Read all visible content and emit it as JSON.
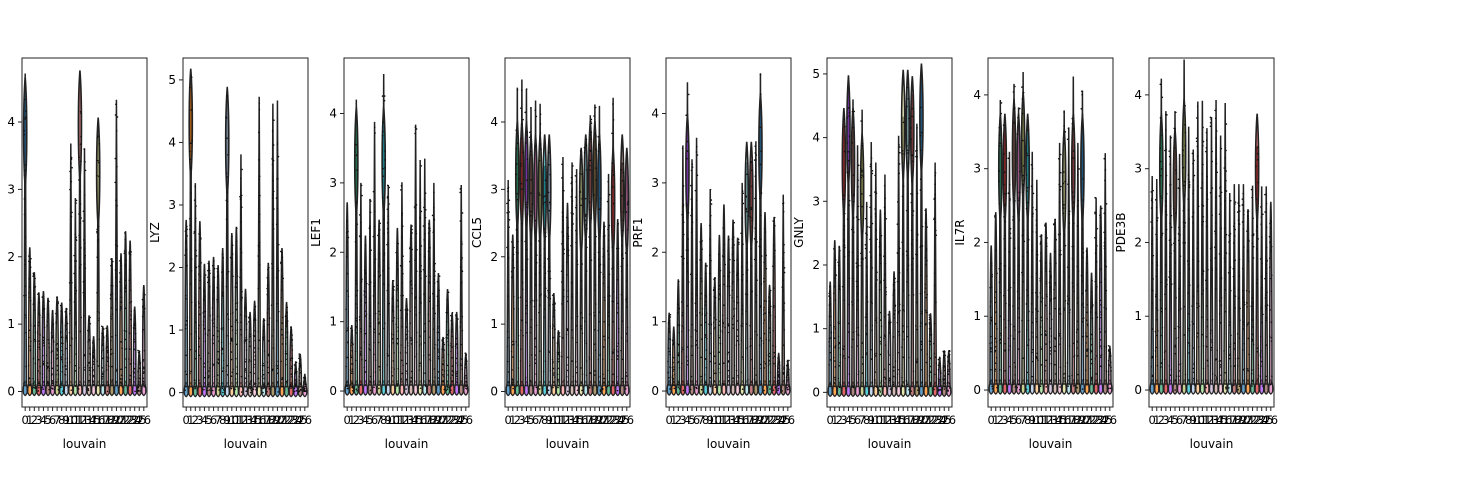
{
  "figure": {
    "background": "#ffffff",
    "edge_color": "#222222"
  },
  "chart_data": [
    {
      "type": "violin",
      "title": "",
      "xlabel": "louvain",
      "ylabel": "",
      "ylim": [
        -0.23,
        4.95
      ],
      "yticks": [
        0,
        1,
        2,
        3,
        4
      ],
      "ytick_labels": [
        "0",
        "1",
        "2",
        "3",
        "4"
      ],
      "categories": [
        "0",
        "1",
        "2",
        "3",
        "4",
        "5",
        "6",
        "7",
        "8",
        "9",
        "10",
        "11",
        "12",
        "13",
        "14",
        "15",
        "16",
        "17",
        "18",
        "19",
        "20",
        "21",
        "22",
        "23",
        "24",
        "25",
        "26"
      ],
      "max_values": [
        4.72,
        2.14,
        1.77,
        1.47,
        1.49,
        1.39,
        1.21,
        1.41,
        1.32,
        1.24,
        3.68,
        2.87,
        4.56,
        3.61,
        1.13,
        0.82,
        4.01,
        0.97,
        0.98,
        1.98,
        4.33,
        2.05,
        2.38,
        2.24,
        1.26,
        0.61,
        1.58
      ],
      "bulk_center": [
        3.85,
        0,
        0,
        0,
        0,
        0,
        0,
        0,
        0,
        0,
        0,
        0,
        3.95,
        0,
        0,
        0,
        3.25,
        0,
        0,
        0,
        0,
        0,
        0,
        0,
        0,
        0,
        0
      ]
    },
    {
      "type": "violin",
      "title": "",
      "xlabel": "louvain",
      "ylabel": "LYZ",
      "ylim": [
        -0.23,
        5.35
      ],
      "yticks": [
        0,
        1,
        2,
        3,
        4,
        5
      ],
      "ytick_labels": [
        "0",
        "1",
        "2",
        "3",
        "4",
        "5"
      ],
      "categories": [
        "0",
        "1",
        "2",
        "3",
        "4",
        "5",
        "6",
        "7",
        "8",
        "9",
        "10",
        "11",
        "12",
        "13",
        "14",
        "15",
        "16",
        "17",
        "18",
        "19",
        "20",
        "21",
        "22",
        "23",
        "24",
        "25",
        "26"
      ],
      "max_values": [
        2.76,
        5.14,
        3.35,
        2.74,
        2.06,
        2.11,
        2.17,
        2.04,
        2.31,
        4.89,
        2.55,
        2.65,
        3.81,
        1.66,
        1.29,
        1.47,
        4.73,
        1.19,
        2.07,
        4.62,
        4.67,
        2.31,
        1.45,
        1.06,
        0.5,
        0.62,
        0.3
      ],
      "bulk_center": [
        0,
        4.3,
        0,
        0,
        0,
        0,
        0,
        0,
        0,
        4.0,
        0,
        0,
        0,
        0,
        0,
        0,
        0,
        0,
        0,
        0,
        0,
        0,
        0,
        0,
        0,
        0,
        0
      ]
    },
    {
      "type": "violin",
      "title": "",
      "xlabel": "louvain",
      "ylabel": "LEF1",
      "ylim": [
        -0.23,
        4.8
      ],
      "yticks": [
        0,
        1,
        2,
        3,
        4
      ],
      "ytick_labels": [
        "0",
        "1",
        "2",
        "3",
        "4"
      ],
      "categories": [
        "0",
        "1",
        "2",
        "3",
        "4",
        "5",
        "6",
        "7",
        "8",
        "9",
        "10",
        "11",
        "12",
        "13",
        "14",
        "15",
        "16",
        "17",
        "18",
        "19",
        "20",
        "21",
        "22",
        "23",
        "24",
        "25",
        "26"
      ],
      "max_values": [
        2.72,
        0.95,
        4.2,
        3.0,
        2.24,
        2.77,
        3.88,
        2.47,
        4.57,
        2.97,
        1.6,
        2.35,
        3.01,
        1.34,
        2.4,
        3.84,
        3.33,
        3.35,
        2.47,
        3.0,
        1.7,
        0.78,
        1.47,
        1.13,
        1.14,
        2.97,
        0.55
      ],
      "bulk_center": [
        0,
        0,
        3.3,
        0,
        0,
        0,
        0,
        0,
        3.3,
        0,
        0,
        0,
        0,
        0,
        0,
        0,
        0,
        0,
        0,
        0,
        0,
        0,
        0,
        0,
        0,
        0,
        0
      ]
    },
    {
      "type": "violin",
      "title": "",
      "xlabel": "louvain",
      "ylabel": "CCL5",
      "ylim": [
        -0.23,
        4.95
      ],
      "yticks": [
        0,
        1,
        2,
        3,
        4
      ],
      "ytick_labels": [
        "0",
        "1",
        "2",
        "3",
        "4"
      ],
      "categories": [
        "0",
        "1",
        "2",
        "3",
        "4",
        "5",
        "6",
        "7",
        "8",
        "9",
        "10",
        "11",
        "12",
        "13",
        "14",
        "15",
        "16",
        "17",
        "18",
        "19",
        "20",
        "21",
        "22",
        "23",
        "24",
        "25",
        "26"
      ],
      "max_values": [
        3.14,
        2.33,
        4.51,
        4.63,
        4.49,
        4.22,
        4.32,
        4.27,
        3.35,
        3.67,
        1.46,
        0.91,
        3.48,
        2.8,
        3.4,
        3.3,
        3.6,
        3.79,
        4.1,
        4.26,
        4.24,
        2.52,
        3.23,
        4.36,
        2.56,
        3.4,
        3.4
      ],
      "bulk_center": [
        0,
        0,
        3.2,
        3.2,
        3.2,
        3.0,
        3.0,
        3.0,
        3.0,
        3.0,
        0,
        0,
        0,
        0,
        0,
        0,
        2.8,
        3.0,
        3.2,
        3.2,
        3.0,
        0,
        0,
        2.8,
        0,
        3.0,
        2.8
      ]
    },
    {
      "type": "violin",
      "title": "",
      "xlabel": "louvain",
      "ylabel": "PRF1",
      "ylim": [
        -0.23,
        4.8
      ],
      "yticks": [
        0,
        1,
        2,
        3,
        4
      ],
      "ytick_labels": [
        "0",
        "1",
        "2",
        "3",
        "4"
      ],
      "categories": [
        "0",
        "1",
        "2",
        "3",
        "4",
        "5",
        "6",
        "7",
        "8",
        "9",
        "10",
        "11",
        "12",
        "13",
        "14",
        "15",
        "16",
        "17",
        "18",
        "19",
        "20",
        "21",
        "22",
        "23",
        "24",
        "25",
        "26"
      ],
      "max_values": [
        1.13,
        0.93,
        1.61,
        3.54,
        4.45,
        3.34,
        3.65,
        2.42,
        1.85,
        2.91,
        1.64,
        2.25,
        2.69,
        2.24,
        2.47,
        2.21,
        3.0,
        3.3,
        3.32,
        3.6,
        4.58,
        2.58,
        1.53,
        2.51,
        0.55,
        2.83,
        0.45
      ],
      "bulk_center": [
        0,
        0,
        0,
        0,
        3.2,
        0,
        0,
        0,
        0,
        0,
        0,
        0,
        0,
        0,
        0,
        0,
        0,
        2.8,
        2.8,
        0,
        3.5,
        0,
        0,
        0,
        0,
        0,
        0
      ]
    },
    {
      "type": "violin",
      "title": "",
      "xlabel": "louvain",
      "ylabel": "GNLY",
      "ylim": [
        -0.23,
        5.25
      ],
      "yticks": [
        0,
        1,
        2,
        3,
        4,
        5
      ],
      "ytick_labels": [
        "0",
        "1",
        "2",
        "3",
        "4",
        "5"
      ],
      "categories": [
        "0",
        "1",
        "2",
        "3",
        "4",
        "5",
        "6",
        "7",
        "8",
        "9",
        "10",
        "11",
        "12",
        "13",
        "14",
        "15",
        "16",
        "17",
        "18",
        "19",
        "20",
        "21",
        "22",
        "23",
        "24",
        "25",
        "26"
      ],
      "max_values": [
        1.74,
        2.39,
        2.3,
        4.3,
        4.98,
        4.6,
        3.88,
        4.44,
        2.99,
        3.93,
        3.61,
        2.87,
        3.42,
        1.28,
        1.9,
        4.03,
        4.33,
        4.91,
        4.68,
        4.22,
        4.92,
        2.89,
        1.24,
        3.61,
        0.56,
        0.66,
        0.66
      ],
      "bulk_center": [
        0,
        0,
        0,
        3.6,
        4.1,
        3.6,
        0,
        3.2,
        0,
        0,
        0,
        0,
        0,
        0,
        0,
        0,
        4.2,
        4.2,
        4.1,
        0,
        4.3,
        0,
        0,
        0,
        0,
        0,
        0
      ]
    },
    {
      "type": "violin",
      "title": "",
      "xlabel": "louvain",
      "ylabel": "IL7R",
      "ylim": [
        -0.23,
        4.5
      ],
      "yticks": [
        0,
        1,
        2,
        3,
        4
      ],
      "ytick_labels": [
        "0",
        "1",
        "2",
        "3",
        "4"
      ],
      "categories": [
        "0",
        "1",
        "2",
        "3",
        "4",
        "5",
        "6",
        "7",
        "8",
        "9",
        "10",
        "11",
        "12",
        "13",
        "14",
        "15",
        "16",
        "17",
        "18",
        "19",
        "20",
        "21",
        "22",
        "23",
        "24",
        "25",
        "26"
      ],
      "max_values": [
        1.96,
        2.41,
        3.93,
        3.62,
        3.23,
        4.15,
        3.83,
        4.31,
        3.55,
        3.23,
        2.85,
        2.11,
        2.27,
        1.86,
        2.32,
        3.35,
        3.79,
        3.56,
        4.25,
        3.35,
        4.06,
        1.93,
        1.59,
        2.61,
        2.5,
        3.21,
        0.6
      ],
      "bulk_center": [
        0,
        0,
        3.0,
        3.0,
        0,
        3.2,
        3.0,
        3.3,
        3.0,
        0,
        0,
        0,
        0,
        0,
        0,
        0,
        2.8,
        0,
        3.0,
        0,
        3.0,
        0,
        0,
        0,
        0,
        0,
        0
      ]
    },
    {
      "type": "violin",
      "title": "",
      "xlabel": "louvain",
      "ylabel": "PDE3B",
      "ylim": [
        -0.23,
        4.5
      ],
      "yticks": [
        0,
        1,
        2,
        3,
        4
      ],
      "ytick_labels": [
        "0",
        "1",
        "2",
        "3",
        "4"
      ],
      "categories": [
        "0",
        "1",
        "2",
        "3",
        "4",
        "5",
        "6",
        "7",
        "8",
        "9",
        "10",
        "11",
        "12",
        "13",
        "14",
        "15",
        "16",
        "17",
        "18",
        "19",
        "20",
        "21",
        "22",
        "23",
        "24",
        "25",
        "26"
      ],
      "max_values": [
        2.9,
        2.86,
        4.22,
        3.78,
        3.45,
        3.78,
        3.2,
        4.48,
        3.57,
        3.26,
        3.91,
        3.92,
        3.55,
        3.7,
        3.93,
        3.45,
        3.89,
        2.67,
        2.79,
        2.79,
        2.79,
        2.45,
        2.77,
        3.3,
        2.76,
        2.76,
        2.55
      ],
      "bulk_center": [
        0,
        0,
        3.0,
        0,
        0,
        2.8,
        0,
        3.2,
        0,
        0,
        0,
        0,
        0,
        0,
        0,
        0,
        0,
        0,
        0,
        0,
        0,
        0,
        0,
        3.0,
        0,
        0,
        0
      ]
    }
  ]
}
